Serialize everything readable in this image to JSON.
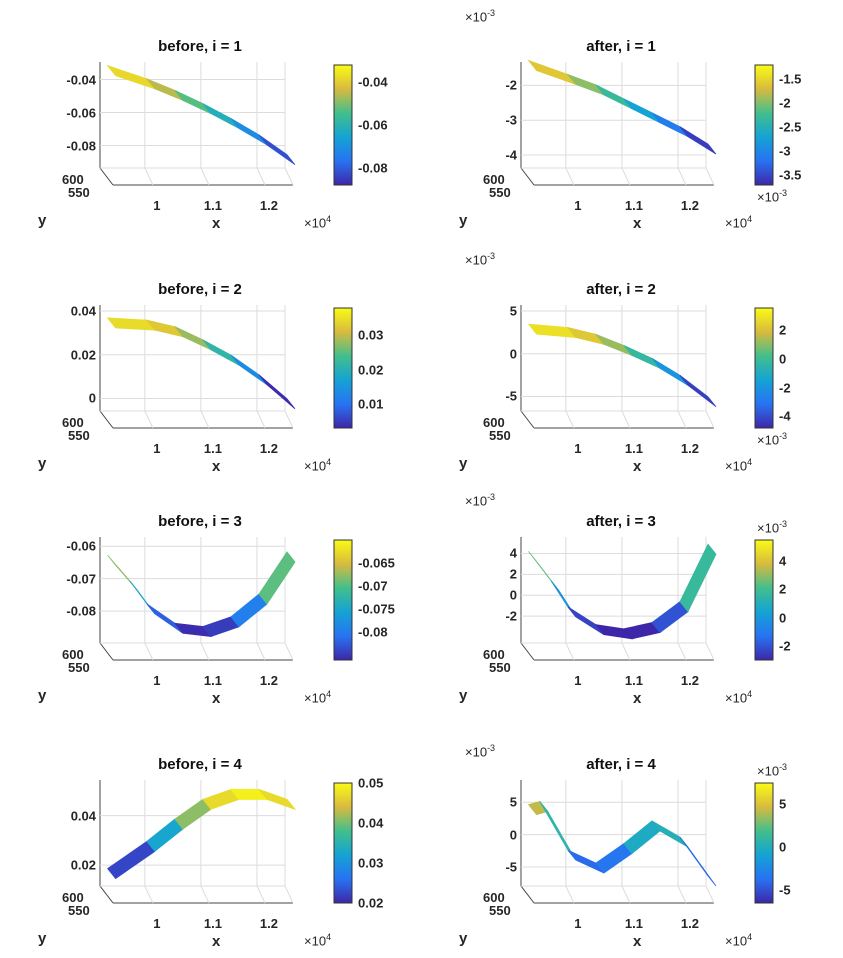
{
  "chart_data": [
    {
      "type": "surface",
      "title": "before, i = 1",
      "xlabel": "x",
      "ylabel": "y",
      "x": [
        0.93,
        1.0,
        1.05,
        1.1,
        1.15,
        1.2,
        1.25
      ],
      "z": [
        -0.034,
        -0.042,
        -0.049,
        -0.057,
        -0.066,
        -0.076,
        -0.088
      ],
      "xlim": [
        0.92,
        1.25
      ],
      "zlim": [
        -0.09,
        -0.033
      ],
      "clim": [
        -0.088,
        -0.032
      ],
      "x_ticks": [
        "1",
        "1.1",
        "1.2"
      ],
      "x_tick_values": [
        1,
        1.1,
        1.2
      ],
      "y_ticks": [
        "600",
        "550"
      ],
      "z_ticks": [
        "-0.04",
        "-0.06",
        "-0.08"
      ],
      "z_tick_values": [
        -0.04,
        -0.06,
        -0.08
      ],
      "colorbar_ticks": [
        "-0.04",
        "-0.06",
        "-0.08"
      ],
      "colorbar_tick_values": [
        -0.04,
        -0.06,
        -0.08
      ],
      "x_exponent": {
        "base": "×10",
        "power": "4"
      },
      "z_exponent": null,
      "colorbar_exponent": null,
      "colormap": "parula",
      "grid": true
    },
    {
      "type": "surface",
      "title": "after, i = 1",
      "xlabel": "x",
      "ylabel": "y",
      "x": [
        0.93,
        1.0,
        1.05,
        1.1,
        1.15,
        1.2,
        1.25
      ],
      "z": [
        -1.4,
        -1.8,
        -2.1,
        -2.5,
        -2.9,
        -3.3,
        -3.8
      ],
      "xlim": [
        0.92,
        1.25
      ],
      "zlim": [
        -4.2,
        -1.5
      ],
      "clim": [
        -3.7,
        -1.2
      ],
      "x_ticks": [
        "1",
        "1.1",
        "1.2"
      ],
      "x_tick_values": [
        1,
        1.1,
        1.2
      ],
      "y_ticks": [
        "600",
        "550"
      ],
      "z_ticks": [
        "-2",
        "-3",
        "-4"
      ],
      "z_tick_values": [
        -2,
        -3,
        -4
      ],
      "colorbar_ticks": [
        "-1.5",
        "-2",
        "-2.5",
        "-3",
        "-3.5"
      ],
      "colorbar_tick_values": [
        -1.5,
        -2,
        -2.5,
        -3,
        -3.5
      ],
      "x_exponent": {
        "base": "×10",
        "power": "4"
      },
      "z_exponent": {
        "base": "×10",
        "power": "-3"
      },
      "colorbar_exponent": {
        "base": "×10",
        "power": "-3",
        "position": "bottom"
      },
      "colormap": "parula",
      "grid": true
    },
    {
      "type": "surface",
      "title": "before, i = 2",
      "xlabel": "x",
      "ylabel": "y",
      "x": [
        0.93,
        1.0,
        1.05,
        1.1,
        1.15,
        1.2,
        1.25
      ],
      "z": [
        0.035,
        0.034,
        0.031,
        0.025,
        0.018,
        0.009,
        -0.002
      ],
      "xlim": [
        0.92,
        1.25
      ],
      "zlim": [
        -0.003,
        0.04
      ],
      "clim": [
        0.003,
        0.038
      ],
      "x_ticks": [
        "1",
        "1.1",
        "1.2"
      ],
      "x_tick_values": [
        1,
        1.1,
        1.2
      ],
      "y_ticks": [
        "600",
        "550"
      ],
      "z_ticks": [
        "0.04",
        "0.02",
        "0"
      ],
      "z_tick_values": [
        0.04,
        0.02,
        0
      ],
      "colorbar_ticks": [
        "0.03",
        "0.02",
        "0.01"
      ],
      "colorbar_tick_values": [
        0.03,
        0.02,
        0.01
      ],
      "x_exponent": {
        "base": "×10",
        "power": "4"
      },
      "z_exponent": null,
      "colorbar_exponent": null,
      "colormap": "parula",
      "grid": true
    },
    {
      "type": "surface",
      "title": "after, i = 2",
      "xlabel": "x",
      "ylabel": "y",
      "x": [
        0.93,
        1.0,
        1.05,
        1.1,
        1.15,
        1.2,
        1.25
      ],
      "z": [
        3,
        2.6,
        1.8,
        0.5,
        -1,
        -3,
        -5.5
      ],
      "xlim": [
        0.92,
        1.25
      ],
      "zlim": [
        -6,
        5
      ],
      "clim": [
        -4.8,
        3.5
      ],
      "x_ticks": [
        "1",
        "1.1",
        "1.2"
      ],
      "x_tick_values": [
        1,
        1.1,
        1.2
      ],
      "y_ticks": [
        "600",
        "550"
      ],
      "z_ticks": [
        "5",
        "0",
        "-5"
      ],
      "z_tick_values": [
        5,
        0,
        -5
      ],
      "colorbar_ticks": [
        "2",
        "0",
        "-2",
        "-4"
      ],
      "colorbar_tick_values": [
        2,
        0,
        -2,
        -4
      ],
      "x_exponent": {
        "base": "×10",
        "power": "4"
      },
      "z_exponent": {
        "base": "×10",
        "power": "-3"
      },
      "colorbar_exponent": {
        "base": "×10",
        "power": "-3",
        "position": "bottom"
      },
      "colormap": "parula",
      "grid": true
    },
    {
      "type": "surface",
      "title": "before, i = 3",
      "xlabel": "x",
      "ylabel": "y",
      "x": [
        0.93,
        0.97,
        1.0,
        1.05,
        1.1,
        1.15,
        1.2,
        1.25
      ],
      "z": [
        -0.064,
        -0.072,
        -0.079,
        -0.085,
        -0.086,
        -0.083,
        -0.076,
        -0.063
      ],
      "xlim": [
        0.92,
        1.25
      ],
      "zlim": [
        -0.088,
        -0.059
      ],
      "clim": [
        -0.086,
        -0.06
      ],
      "x_ticks": [
        "1",
        "1.1",
        "1.2"
      ],
      "x_tick_values": [
        1,
        1.1,
        1.2
      ],
      "y_ticks": [
        "600",
        "550"
      ],
      "z_ticks": [
        "-0.06",
        "-0.07",
        "-0.08"
      ],
      "z_tick_values": [
        -0.06,
        -0.07,
        -0.08
      ],
      "colorbar_ticks": [
        "-0.065",
        "-0.07",
        "-0.075",
        "-0.08"
      ],
      "colorbar_tick_values": [
        -0.065,
        -0.07,
        -0.075,
        -0.08
      ],
      "x_exponent": {
        "base": "×10",
        "power": "4"
      },
      "z_exponent": null,
      "colorbar_exponent": null,
      "colormap": "parula",
      "grid": true
    },
    {
      "type": "surface",
      "title": "after, i = 3",
      "xlabel": "x",
      "ylabel": "y",
      "x": [
        0.93,
        0.97,
        1.0,
        1.05,
        1.1,
        1.15,
        1.2,
        1.25
      ],
      "z": [
        3.8,
        1,
        -1.5,
        -3.2,
        -3.6,
        -3,
        -1,
        4.5
      ],
      "xlim": [
        0.92,
        1.25
      ],
      "zlim": [
        -4,
        5
      ],
      "clim": [
        -3,
        5.5
      ],
      "x_ticks": [
        "1",
        "1.1",
        "1.2"
      ],
      "x_tick_values": [
        1,
        1.1,
        1.2
      ],
      "y_ticks": [
        "600",
        "550"
      ],
      "z_ticks": [
        "4",
        "2",
        "0",
        "-2"
      ],
      "z_tick_values": [
        4,
        2,
        0,
        -2
      ],
      "colorbar_ticks": [
        "4",
        "2",
        "0",
        "-2"
      ],
      "colorbar_tick_values": [
        4,
        2,
        0,
        -2
      ],
      "x_exponent": {
        "base": "×10",
        "power": "4"
      },
      "z_exponent": {
        "base": "×10",
        "power": "-3"
      },
      "colorbar_exponent": {
        "base": "×10",
        "power": "-3",
        "position": "top"
      },
      "colormap": "parula",
      "grid": true
    },
    {
      "type": "surface",
      "title": "before, i = 4",
      "xlabel": "x",
      "ylabel": "y",
      "x": [
        0.93,
        1.0,
        1.05,
        1.1,
        1.15,
        1.2,
        1.25
      ],
      "z": [
        0.017,
        0.028,
        0.037,
        0.045,
        0.049,
        0.049,
        0.045
      ],
      "xlim": [
        0.92,
        1.25
      ],
      "zlim": [
        0.014,
        0.052
      ],
      "clim": [
        0.02,
        0.05
      ],
      "x_ticks": [
        "1",
        "1.1",
        "1.2"
      ],
      "x_tick_values": [
        1,
        1.1,
        1.2
      ],
      "y_ticks": [
        "600",
        "550"
      ],
      "z_ticks": [
        "0.04",
        "0.02"
      ],
      "z_tick_values": [
        0.04,
        0.02
      ],
      "colorbar_ticks": [
        "0.05",
        "0.04",
        "0.03",
        "0.02"
      ],
      "colorbar_tick_values": [
        0.05,
        0.04,
        0.03,
        0.02
      ],
      "x_exponent": {
        "base": "×10",
        "power": "4"
      },
      "z_exponent": null,
      "colorbar_exponent": null,
      "colormap": "parula",
      "grid": true
    },
    {
      "type": "surface",
      "title": "after, i = 4",
      "xlabel": "x",
      "ylabel": "y",
      "x": [
        0.93,
        0.95,
        1.0,
        1.05,
        1.1,
        1.15,
        1.2,
        1.25
      ],
      "z": [
        4,
        4.5,
        -3,
        -5,
        -2,
        1.5,
        -1,
        -7
      ],
      "xlim": [
        0.92,
        1.25
      ],
      "zlim": [
        -7,
        7.5
      ],
      "clim": [
        -6.5,
        7.5
      ],
      "x_ticks": [
        "1",
        "1.1",
        "1.2"
      ],
      "x_tick_values": [
        1,
        1.1,
        1.2
      ],
      "y_ticks": [
        "600",
        "550"
      ],
      "z_ticks": [
        "5",
        "0",
        "-5"
      ],
      "z_tick_values": [
        5,
        0,
        -5
      ],
      "colorbar_ticks": [
        "5",
        "0",
        "-5"
      ],
      "colorbar_tick_values": [
        5,
        0,
        -5
      ],
      "x_exponent": {
        "base": "×10",
        "power": "4"
      },
      "z_exponent": {
        "base": "×10",
        "power": "-3"
      },
      "colorbar_exponent": {
        "base": "×10",
        "power": "-3",
        "position": "top"
      },
      "colormap": "parula",
      "grid": true
    }
  ]
}
